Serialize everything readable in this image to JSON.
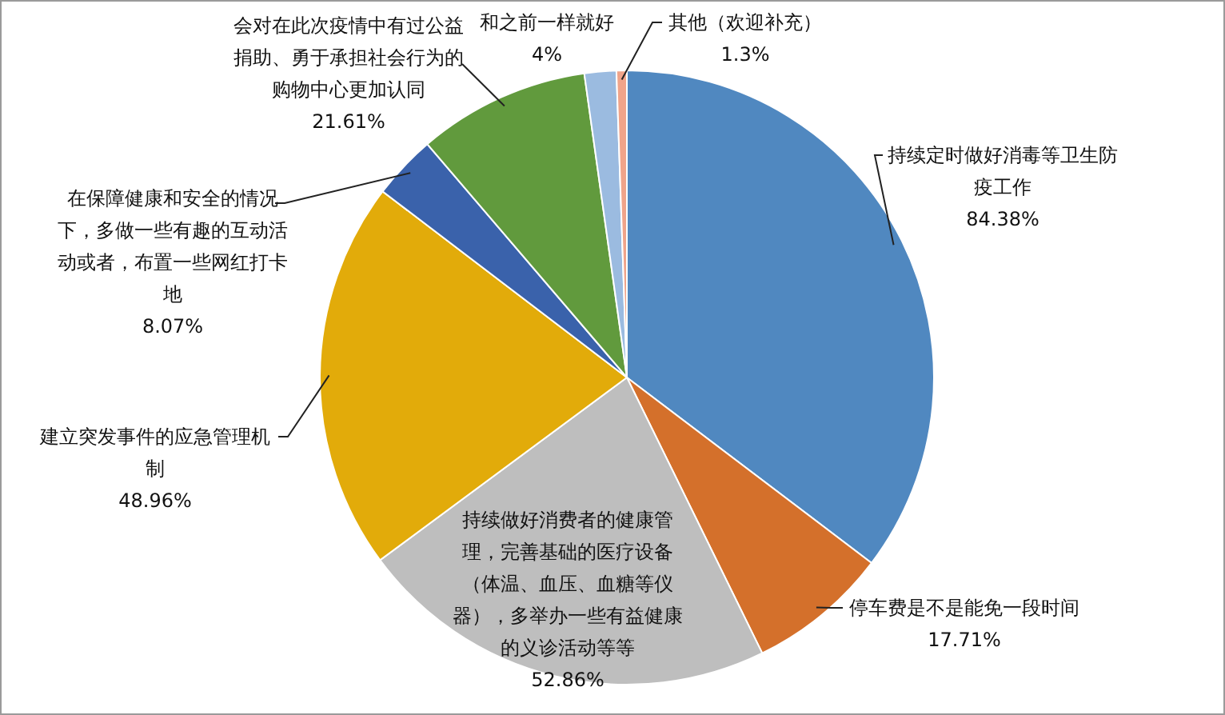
{
  "chart_data": {
    "type": "pie",
    "categories": [
      "持续定时做好消毒等卫生防疫工作",
      "停车费是不是能免一段时间",
      "持续做好消费者的健康管理，完善基础的医疗设备（体温、血压、血糖等仪器），多举办一些有益健康的义诊活动等等",
      "建立突发事件的应急管理机制",
      "在保障健康和安全的情况下，多做一些有趣的互动活动或者，布置一些网红打卡地",
      "会对在此次疫情中有过公益捐助、勇于承担社会行为的购物中心更加认同",
      "和之前一样就好",
      "其他（欢迎补充）"
    ],
    "values": [
      84.38,
      17.71,
      52.86,
      48.96,
      8.07,
      21.61,
      4,
      1.3
    ],
    "value_labels": [
      "84.38%",
      "17.71%",
      "52.86%",
      "48.96%",
      "8.07%",
      "21.61%",
      "4%",
      "1.3%"
    ],
    "colors": [
      "#5088c0",
      "#d4702b",
      "#bebebe",
      "#e2ab0a",
      "#3a62ab",
      "#619a3d",
      "#9bbbe0",
      "#f0a48a"
    ],
    "legend": false
  }
}
